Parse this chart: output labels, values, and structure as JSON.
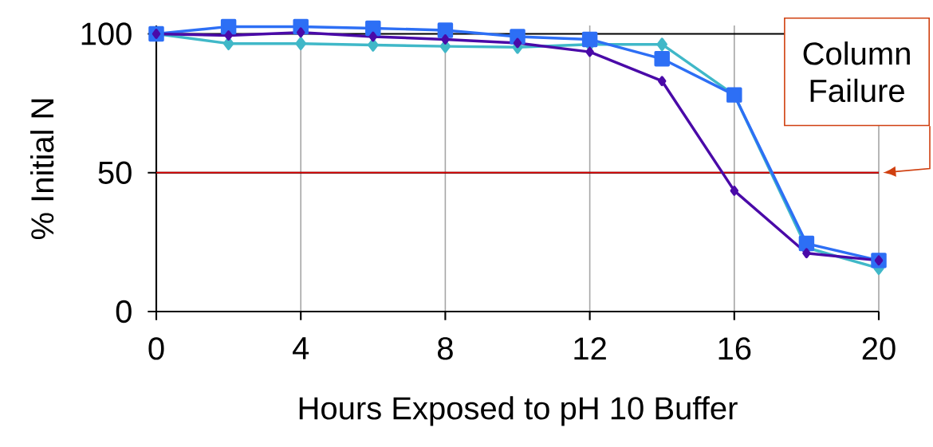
{
  "chart_data": {
    "type": "line",
    "xlabel": "Hours Exposed to pH 10 Buffer",
    "ylabel": "% Initial N",
    "x": [
      0,
      2,
      4,
      6,
      8,
      10,
      12,
      14,
      16,
      18,
      20
    ],
    "series": [
      {
        "color": "#4a0aa8",
        "marker": "diamond",
        "values": [
          100,
          99.4,
          100.5,
          99,
          98,
          96.7,
          93.5,
          83,
          43.5,
          21,
          18.4
        ]
      },
      {
        "color": "#2d6ff5",
        "marker": "square",
        "values": [
          100,
          102.6,
          102.6,
          102,
          101.3,
          99,
          98,
          91,
          78,
          24.5,
          18.4
        ]
      },
      {
        "color": "#40b8c8",
        "marker": "diamond",
        "values": [
          100,
          96.5,
          96.5,
          96,
          95.5,
          95.2,
          96.2,
          96.2,
          78,
          23,
          15.6
        ]
      }
    ],
    "xlim": [
      0,
      20
    ],
    "ylim": [
      0,
      103
    ],
    "xticks": [
      0,
      4,
      8,
      12,
      16,
      20
    ],
    "yticks": [
      0,
      50,
      100
    ],
    "grid": true,
    "ref_lines": [
      {
        "axis": "y",
        "value": 50,
        "label": "Column Failure",
        "color": "#e00000"
      }
    ]
  }
}
